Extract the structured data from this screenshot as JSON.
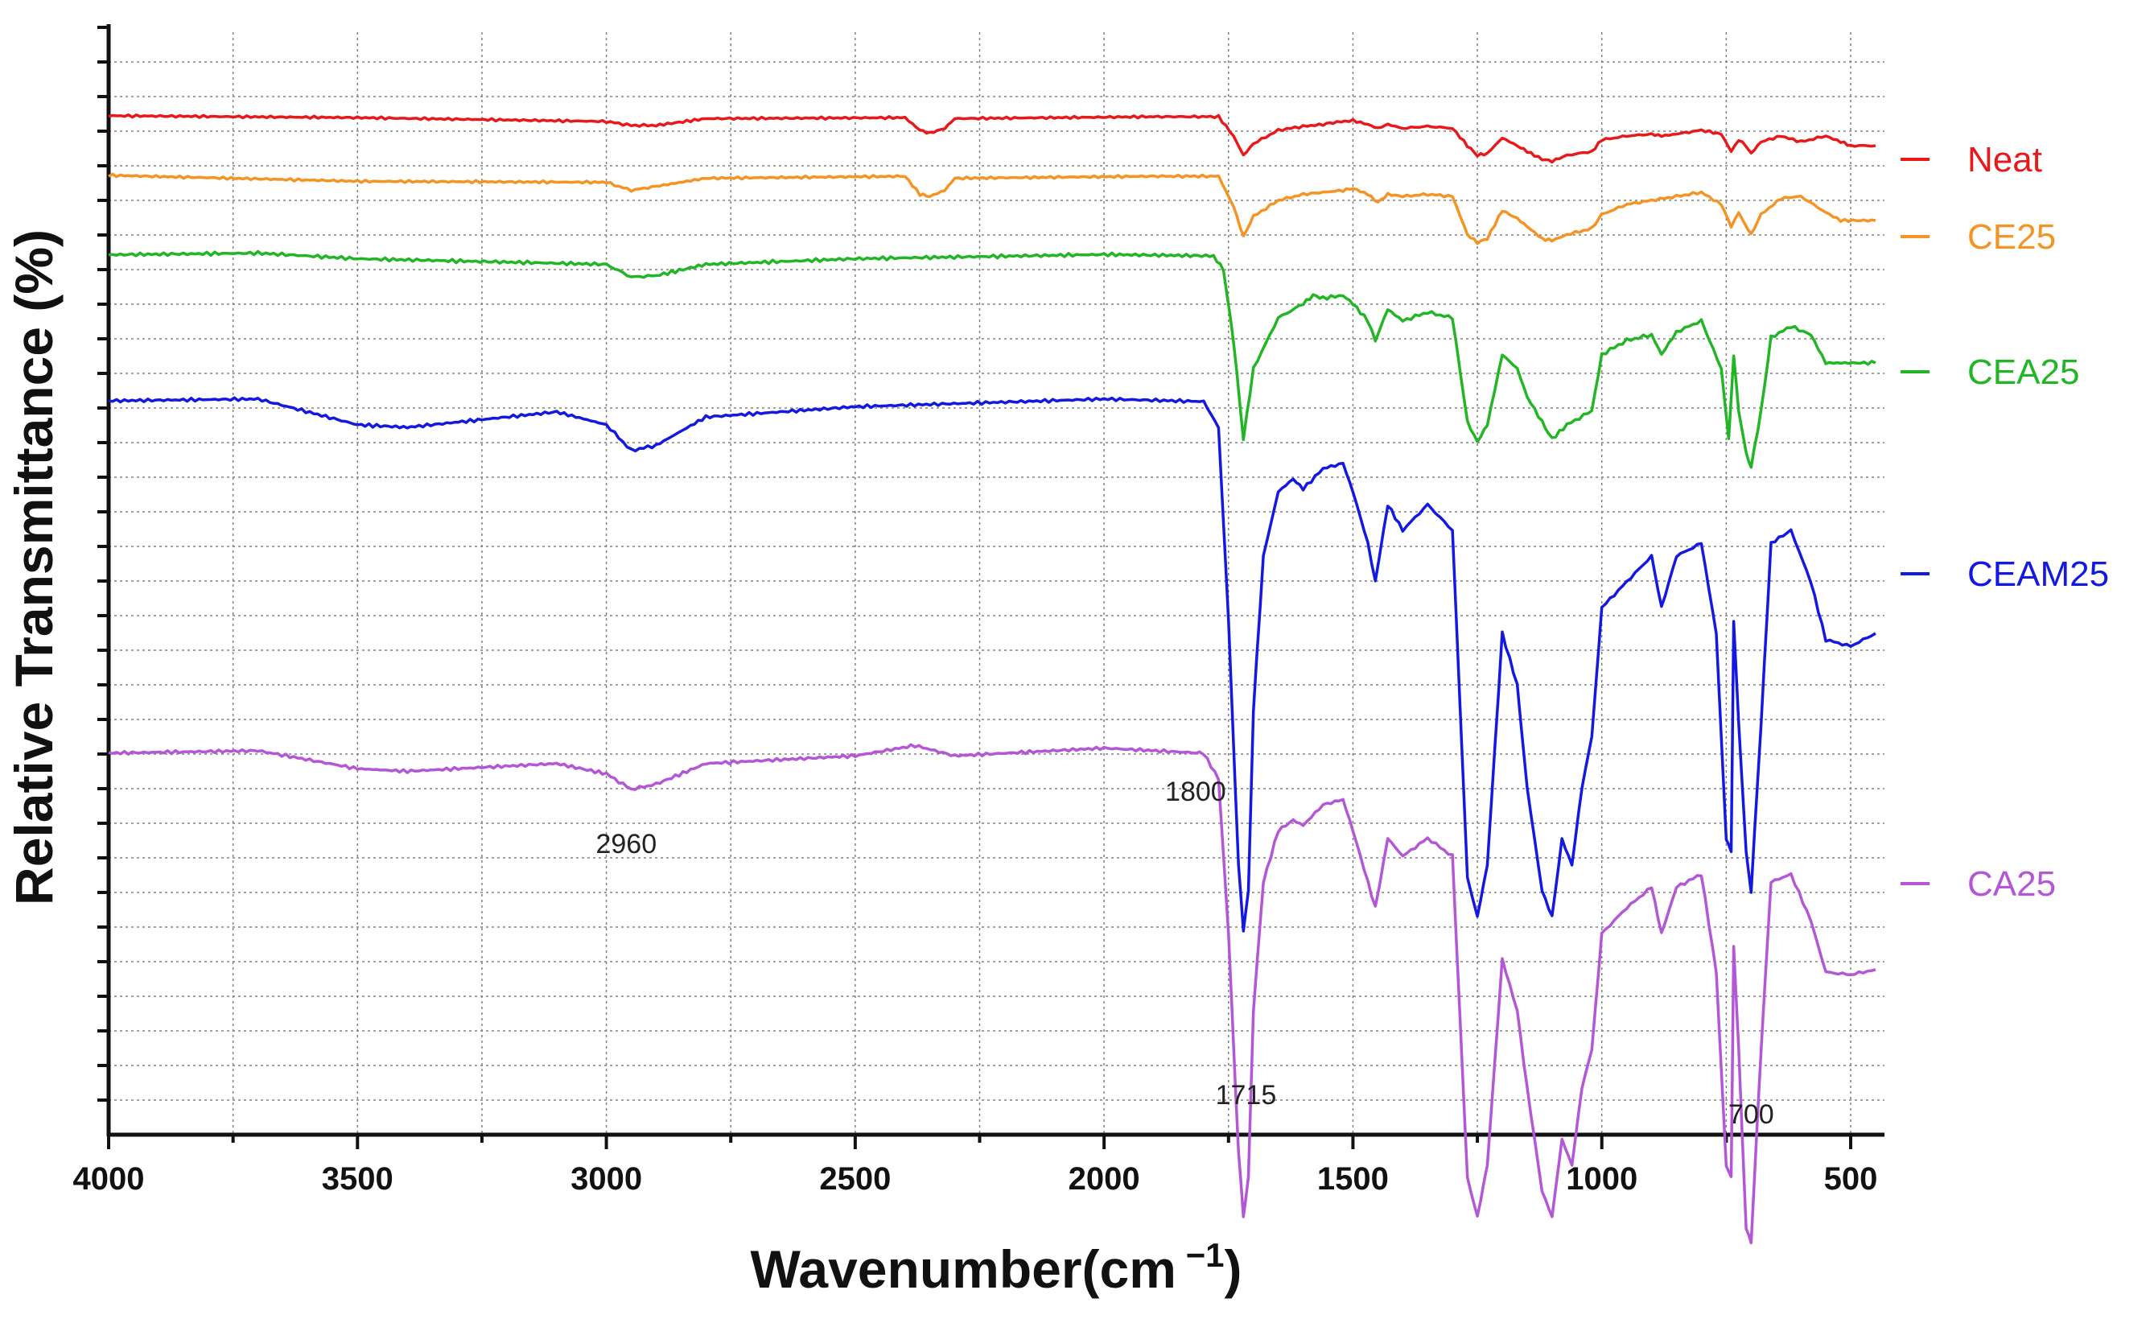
{
  "chart_data": {
    "type": "line",
    "xlabel": "Wavenumber(cm",
    "xlabel_sup": "−1",
    "xlabel_close": ")",
    "ylabel": "Relative  Transmittance (%)",
    "xlim": [
      4000,
      450
    ],
    "x_reversed": true,
    "x_ticks": [
      4000,
      3500,
      3000,
      2500,
      2000,
      1500,
      1000,
      500
    ],
    "x_tick_labels": [
      "4000",
      "3500",
      "3000",
      "2500",
      "2000",
      "1500",
      "1000",
      "500"
    ],
    "grid": true,
    "legend": "right",
    "series": [
      {
        "name": "Neat",
        "color": "#e8191b",
        "baseline": 1.0,
        "points": [
          [
            4000,
            1.0
          ],
          [
            3500,
            -1
          ],
          [
            3000,
            -5
          ],
          [
            2950,
            -9
          ],
          [
            2900,
            -9
          ],
          [
            2800,
            -2
          ],
          [
            2400,
            -1
          ],
          [
            2370,
            -14
          ],
          [
            2350,
            -17
          ],
          [
            2320,
            -12
          ],
          [
            2300,
            -2
          ],
          [
            1900,
            0
          ],
          [
            1770,
            0
          ],
          [
            1740,
            -20
          ],
          [
            1720,
            -40
          ],
          [
            1700,
            -28
          ],
          [
            1650,
            -14
          ],
          [
            1600,
            -10
          ],
          [
            1560,
            -8
          ],
          [
            1540,
            -6
          ],
          [
            1500,
            -4
          ],
          [
            1470,
            -8
          ],
          [
            1450,
            -12
          ],
          [
            1430,
            -8
          ],
          [
            1400,
            -12
          ],
          [
            1350,
            -10
          ],
          [
            1300,
            -12
          ],
          [
            1270,
            -30
          ],
          [
            1250,
            -40
          ],
          [
            1230,
            -38
          ],
          [
            1200,
            -22
          ],
          [
            1170,
            -30
          ],
          [
            1150,
            -36
          ],
          [
            1120,
            -44
          ],
          [
            1100,
            -46
          ],
          [
            1070,
            -40
          ],
          [
            1020,
            -36
          ],
          [
            1000,
            -24
          ],
          [
            950,
            -20
          ],
          [
            900,
            -18
          ],
          [
            880,
            -20
          ],
          [
            850,
            -18
          ],
          [
            800,
            -14
          ],
          [
            760,
            -18
          ],
          [
            740,
            -36
          ],
          [
            725,
            -24
          ],
          [
            710,
            -30
          ],
          [
            700,
            -38
          ],
          [
            680,
            -26
          ],
          [
            640,
            -20
          ],
          [
            600,
            -26
          ],
          [
            550,
            -20
          ],
          [
            520,
            -26
          ],
          [
            500,
            -30
          ],
          [
            450,
            -30
          ]
        ]
      },
      {
        "name": "CE25",
        "color": "#f39425",
        "baseline": 0.9,
        "points": [
          [
            4000,
            0.9
          ],
          [
            3500,
            -5
          ],
          [
            3000,
            -6
          ],
          [
            2950,
            -14
          ],
          [
            2900,
            -10
          ],
          [
            2800,
            -2
          ],
          [
            2400,
            0
          ],
          [
            2370,
            -18
          ],
          [
            2350,
            -20
          ],
          [
            2320,
            -14
          ],
          [
            2300,
            -2
          ],
          [
            1900,
            0
          ],
          [
            1770,
            0
          ],
          [
            1740,
            -30
          ],
          [
            1720,
            -60
          ],
          [
            1700,
            -40
          ],
          [
            1650,
            -24
          ],
          [
            1600,
            -18
          ],
          [
            1560,
            -16
          ],
          [
            1520,
            -14
          ],
          [
            1500,
            -12
          ],
          [
            1470,
            -18
          ],
          [
            1450,
            -26
          ],
          [
            1430,
            -18
          ],
          [
            1400,
            -20
          ],
          [
            1350,
            -18
          ],
          [
            1300,
            -20
          ],
          [
            1270,
            -58
          ],
          [
            1250,
            -66
          ],
          [
            1230,
            -62
          ],
          [
            1200,
            -34
          ],
          [
            1170,
            -42
          ],
          [
            1150,
            -50
          ],
          [
            1120,
            -62
          ],
          [
            1100,
            -64
          ],
          [
            1070,
            -58
          ],
          [
            1020,
            -52
          ],
          [
            1000,
            -38
          ],
          [
            950,
            -28
          ],
          [
            900,
            -24
          ],
          [
            850,
            -20
          ],
          [
            800,
            -16
          ],
          [
            760,
            -28
          ],
          [
            740,
            -50
          ],
          [
            725,
            -36
          ],
          [
            710,
            -50
          ],
          [
            700,
            -58
          ],
          [
            680,
            -38
          ],
          [
            640,
            -22
          ],
          [
            600,
            -20
          ],
          [
            550,
            -36
          ],
          [
            520,
            -44
          ],
          [
            450,
            -44
          ]
        ]
      },
      {
        "name": "CEA25",
        "color": "#22b525",
        "baseline": 0.8,
        "points": [
          [
            4000,
            0.8
          ],
          [
            3700,
            2
          ],
          [
            3500,
            -2
          ],
          [
            3000,
            -6
          ],
          [
            2950,
            -15
          ],
          [
            2900,
            -14
          ],
          [
            2800,
            -6
          ],
          [
            2500,
            -2
          ],
          [
            2000,
            1
          ],
          [
            1780,
            0
          ],
          [
            1760,
            -10
          ],
          [
            1740,
            -60
          ],
          [
            1720,
            -130
          ],
          [
            1700,
            -80
          ],
          [
            1650,
            -44
          ],
          [
            1600,
            -34
          ],
          [
            1580,
            -28
          ],
          [
            1560,
            -30
          ],
          [
            1520,
            -28
          ],
          [
            1500,
            -34
          ],
          [
            1470,
            -46
          ],
          [
            1455,
            -60
          ],
          [
            1430,
            -38
          ],
          [
            1400,
            -46
          ],
          [
            1350,
            -40
          ],
          [
            1300,
            -44
          ],
          [
            1270,
            -118
          ],
          [
            1250,
            -132
          ],
          [
            1230,
            -120
          ],
          [
            1200,
            -70
          ],
          [
            1170,
            -80
          ],
          [
            1150,
            -100
          ],
          [
            1120,
            -118
          ],
          [
            1100,
            -130
          ],
          [
            1070,
            -120
          ],
          [
            1020,
            -110
          ],
          [
            1000,
            -70
          ],
          [
            950,
            -60
          ],
          [
            900,
            -56
          ],
          [
            880,
            -70
          ],
          [
            850,
            -54
          ],
          [
            800,
            -46
          ],
          [
            760,
            -80
          ],
          [
            745,
            -130
          ],
          [
            735,
            -70
          ],
          [
            725,
            -110
          ],
          [
            710,
            -140
          ],
          [
            700,
            -150
          ],
          [
            680,
            -110
          ],
          [
            660,
            -58
          ],
          [
            620,
            -50
          ],
          [
            580,
            -56
          ],
          [
            550,
            -76
          ],
          [
            450,
            -76
          ]
        ]
      },
      {
        "name": "CEAM25",
        "color": "#1319e0",
        "baseline": 0.6,
        "points": [
          [
            4000,
            0.6
          ],
          [
            3700,
            2
          ],
          [
            3500,
            -18
          ],
          [
            3400,
            -20
          ],
          [
            3100,
            -8
          ],
          [
            3000,
            -18
          ],
          [
            2950,
            -38
          ],
          [
            2900,
            -34
          ],
          [
            2800,
            -12
          ],
          [
            2500,
            -4
          ],
          [
            2000,
            2
          ],
          [
            1800,
            0
          ],
          [
            1770,
            -20
          ],
          [
            1750,
            -170
          ],
          [
            1730,
            -360
          ],
          [
            1720,
            -410
          ],
          [
            1710,
            -380
          ],
          [
            1700,
            -240
          ],
          [
            1680,
            -120
          ],
          [
            1650,
            -70
          ],
          [
            1620,
            -60
          ],
          [
            1600,
            -68
          ],
          [
            1560,
            -52
          ],
          [
            1520,
            -48
          ],
          [
            1500,
            -70
          ],
          [
            1470,
            -110
          ],
          [
            1455,
            -140
          ],
          [
            1430,
            -80
          ],
          [
            1400,
            -100
          ],
          [
            1350,
            -80
          ],
          [
            1300,
            -100
          ],
          [
            1270,
            -370
          ],
          [
            1250,
            -400
          ],
          [
            1230,
            -360
          ],
          [
            1200,
            -180
          ],
          [
            1170,
            -220
          ],
          [
            1150,
            -300
          ],
          [
            1120,
            -380
          ],
          [
            1100,
            -400
          ],
          [
            1080,
            -340
          ],
          [
            1060,
            -360
          ],
          [
            1040,
            -300
          ],
          [
            1020,
            -260
          ],
          [
            1000,
            -160
          ],
          [
            950,
            -140
          ],
          [
            900,
            -120
          ],
          [
            880,
            -160
          ],
          [
            850,
            -120
          ],
          [
            800,
            -110
          ],
          [
            770,
            -180
          ],
          [
            750,
            -340
          ],
          [
            740,
            -350
          ],
          [
            735,
            -170
          ],
          [
            725,
            -250
          ],
          [
            710,
            -350
          ],
          [
            700,
            -380
          ],
          [
            680,
            -250
          ],
          [
            660,
            -110
          ],
          [
            620,
            -100
          ],
          [
            580,
            -140
          ],
          [
            550,
            -185
          ],
          [
            500,
            -190
          ],
          [
            450,
            -180
          ]
        ]
      },
      {
        "name": "CA25",
        "color": "#b457d7",
        "baseline": 0.1,
        "points": [
          [
            4000,
            0.1
          ],
          [
            3700,
            2
          ],
          [
            3500,
            -12
          ],
          [
            3400,
            -14
          ],
          [
            3100,
            -8
          ],
          [
            3000,
            -16
          ],
          [
            2950,
            -28
          ],
          [
            2900,
            -24
          ],
          [
            2800,
            -8
          ],
          [
            2500,
            -2
          ],
          [
            2380,
            6
          ],
          [
            2300,
            -2
          ],
          [
            2000,
            4
          ],
          [
            1800,
            0
          ],
          [
            1770,
            -20
          ],
          [
            1750,
            -140
          ],
          [
            1730,
            -310
          ],
          [
            1720,
            -360
          ],
          [
            1710,
            -330
          ],
          [
            1700,
            -200
          ],
          [
            1680,
            -100
          ],
          [
            1650,
            -60
          ],
          [
            1620,
            -52
          ],
          [
            1600,
            -56
          ],
          [
            1560,
            -40
          ],
          [
            1520,
            -36
          ],
          [
            1500,
            -60
          ],
          [
            1470,
            -100
          ],
          [
            1455,
            -120
          ],
          [
            1430,
            -66
          ],
          [
            1400,
            -80
          ],
          [
            1350,
            -66
          ],
          [
            1300,
            -80
          ],
          [
            1270,
            -330
          ],
          [
            1250,
            -360
          ],
          [
            1230,
            -320
          ],
          [
            1200,
            -160
          ],
          [
            1170,
            -200
          ],
          [
            1150,
            -260
          ],
          [
            1120,
            -340
          ],
          [
            1100,
            -360
          ],
          [
            1080,
            -300
          ],
          [
            1060,
            -320
          ],
          [
            1040,
            -260
          ],
          [
            1020,
            -230
          ],
          [
            1000,
            -140
          ],
          [
            950,
            -120
          ],
          [
            900,
            -104
          ],
          [
            880,
            -140
          ],
          [
            850,
            -104
          ],
          [
            800,
            -94
          ],
          [
            770,
            -170
          ],
          [
            750,
            -320
          ],
          [
            740,
            -330
          ],
          [
            735,
            -150
          ],
          [
            725,
            -230
          ],
          [
            710,
            -370
          ],
          [
            700,
            -380
          ],
          [
            680,
            -230
          ],
          [
            660,
            -100
          ],
          [
            620,
            -94
          ],
          [
            580,
            -130
          ],
          [
            550,
            -170
          ],
          [
            500,
            -172
          ],
          [
            450,
            -168
          ]
        ]
      }
    ],
    "annotations": [
      {
        "text": "2960",
        "x": 2960
      },
      {
        "text": "1800",
        "x": 1800
      },
      {
        "text": "1715",
        "x": 1715
      },
      {
        "text": "700",
        "x": 700
      }
    ]
  }
}
